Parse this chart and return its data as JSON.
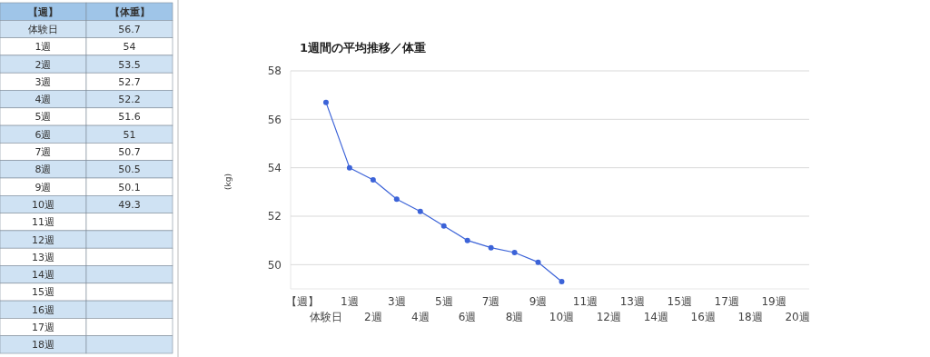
{
  "chart_data": {
    "type": "line",
    "title": "1週間の平均推移／体重",
    "ylabel": "(kg)",
    "categories": [
      "【週】",
      "体験日",
      "1週",
      "2週",
      "3週",
      "4週",
      "5週",
      "6週",
      "7週",
      "8週",
      "9週",
      "10週",
      "11週",
      "12週",
      "13週",
      "14週",
      "15週",
      "16週",
      "17週",
      "18週",
      "19週",
      "20週"
    ],
    "series": [
      {
        "name": "【体重】",
        "color": "#3c63d8",
        "values": [
          null,
          56.7,
          54,
          53.5,
          52.7,
          52.2,
          51.6,
          51,
          50.7,
          50.5,
          50.1,
          49.3,
          null,
          null,
          null,
          null,
          null,
          null,
          null,
          null,
          null,
          null
        ]
      }
    ],
    "value_labels": [
      null,
      "56.7",
      "54",
      "53.5",
      "52.7",
      "52.2",
      "51.6",
      "51",
      "50.7",
      "50.5",
      "50.1",
      "49.3",
      null,
      null,
      null,
      null,
      null,
      null,
      null,
      null,
      null,
      null
    ],
    "ylim": [
      49,
      58
    ],
    "yticks": [
      50,
      52,
      54,
      56,
      58
    ],
    "grid": "y",
    "marker": "circle",
    "line_style": "solid",
    "legend": false
  }
}
